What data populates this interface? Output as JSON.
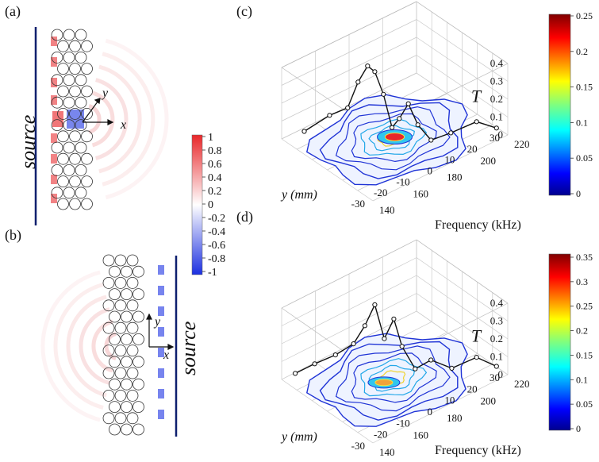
{
  "panels": {
    "a": {
      "label": "(a)",
      "source_label": "source",
      "x_axis": "x",
      "y_axis": "y"
    },
    "b": {
      "label": "(b)",
      "source_label": "source",
      "x_axis": "x",
      "y_axis": "y"
    },
    "c": {
      "label": "(c)"
    },
    "d": {
      "label": "(d)"
    }
  },
  "colors": {
    "positive": "#e8272a",
    "negative": "#1b2fe0",
    "source_line": "#0d1f6e",
    "contour": "#1f33d6"
  },
  "chart_data": [
    {
      "type": "heatmap",
      "panel": "a/b colorbar",
      "ticks": [
        "1",
        "0.8",
        "0.6",
        "0.4",
        "0.2",
        "0",
        "-0.2",
        "-0.4",
        "-0.6",
        "-0.8",
        "-1"
      ],
      "range": [
        -1,
        1
      ]
    },
    {
      "type": "line",
      "panel": "c",
      "zlabel": "T",
      "z_ticks": [
        "0.4",
        "0.3",
        "0.2",
        "0.1",
        "0"
      ],
      "ylabel_var": "y",
      "ylabel_unit": "(mm)",
      "y_ticks": [
        "30",
        "20",
        "10",
        "0",
        "-10",
        "-20",
        "-30"
      ],
      "xlabel": "Frequency (kHz)",
      "x_ticks": [
        "140",
        "160",
        "180",
        "200",
        "220"
      ],
      "colorbar_ticks": [
        "0.25",
        "0.2",
        "0.15",
        "0.1",
        "0.05",
        "0"
      ],
      "colorbar_range": [
        0,
        0.25
      ]
    },
    {
      "type": "line",
      "panel": "d",
      "zlabel": "T",
      "z_ticks": [
        "0.4",
        "0.3",
        "0.2",
        "0.1",
        "0"
      ],
      "ylabel_var": "y",
      "ylabel_unit": "(mm)",
      "y_ticks": [
        "30",
        "20",
        "10",
        "0",
        "-10",
        "-20",
        "-30"
      ],
      "xlabel": "Frequency (kHz)",
      "x_ticks": [
        "140",
        "160",
        "180",
        "200",
        "220"
      ],
      "colorbar_ticks": [
        "0.35",
        "0.3",
        "0.25",
        "0.2",
        "0.15",
        "0.1",
        "0.05",
        "0"
      ],
      "colorbar_range": [
        0,
        0.35
      ]
    }
  ]
}
